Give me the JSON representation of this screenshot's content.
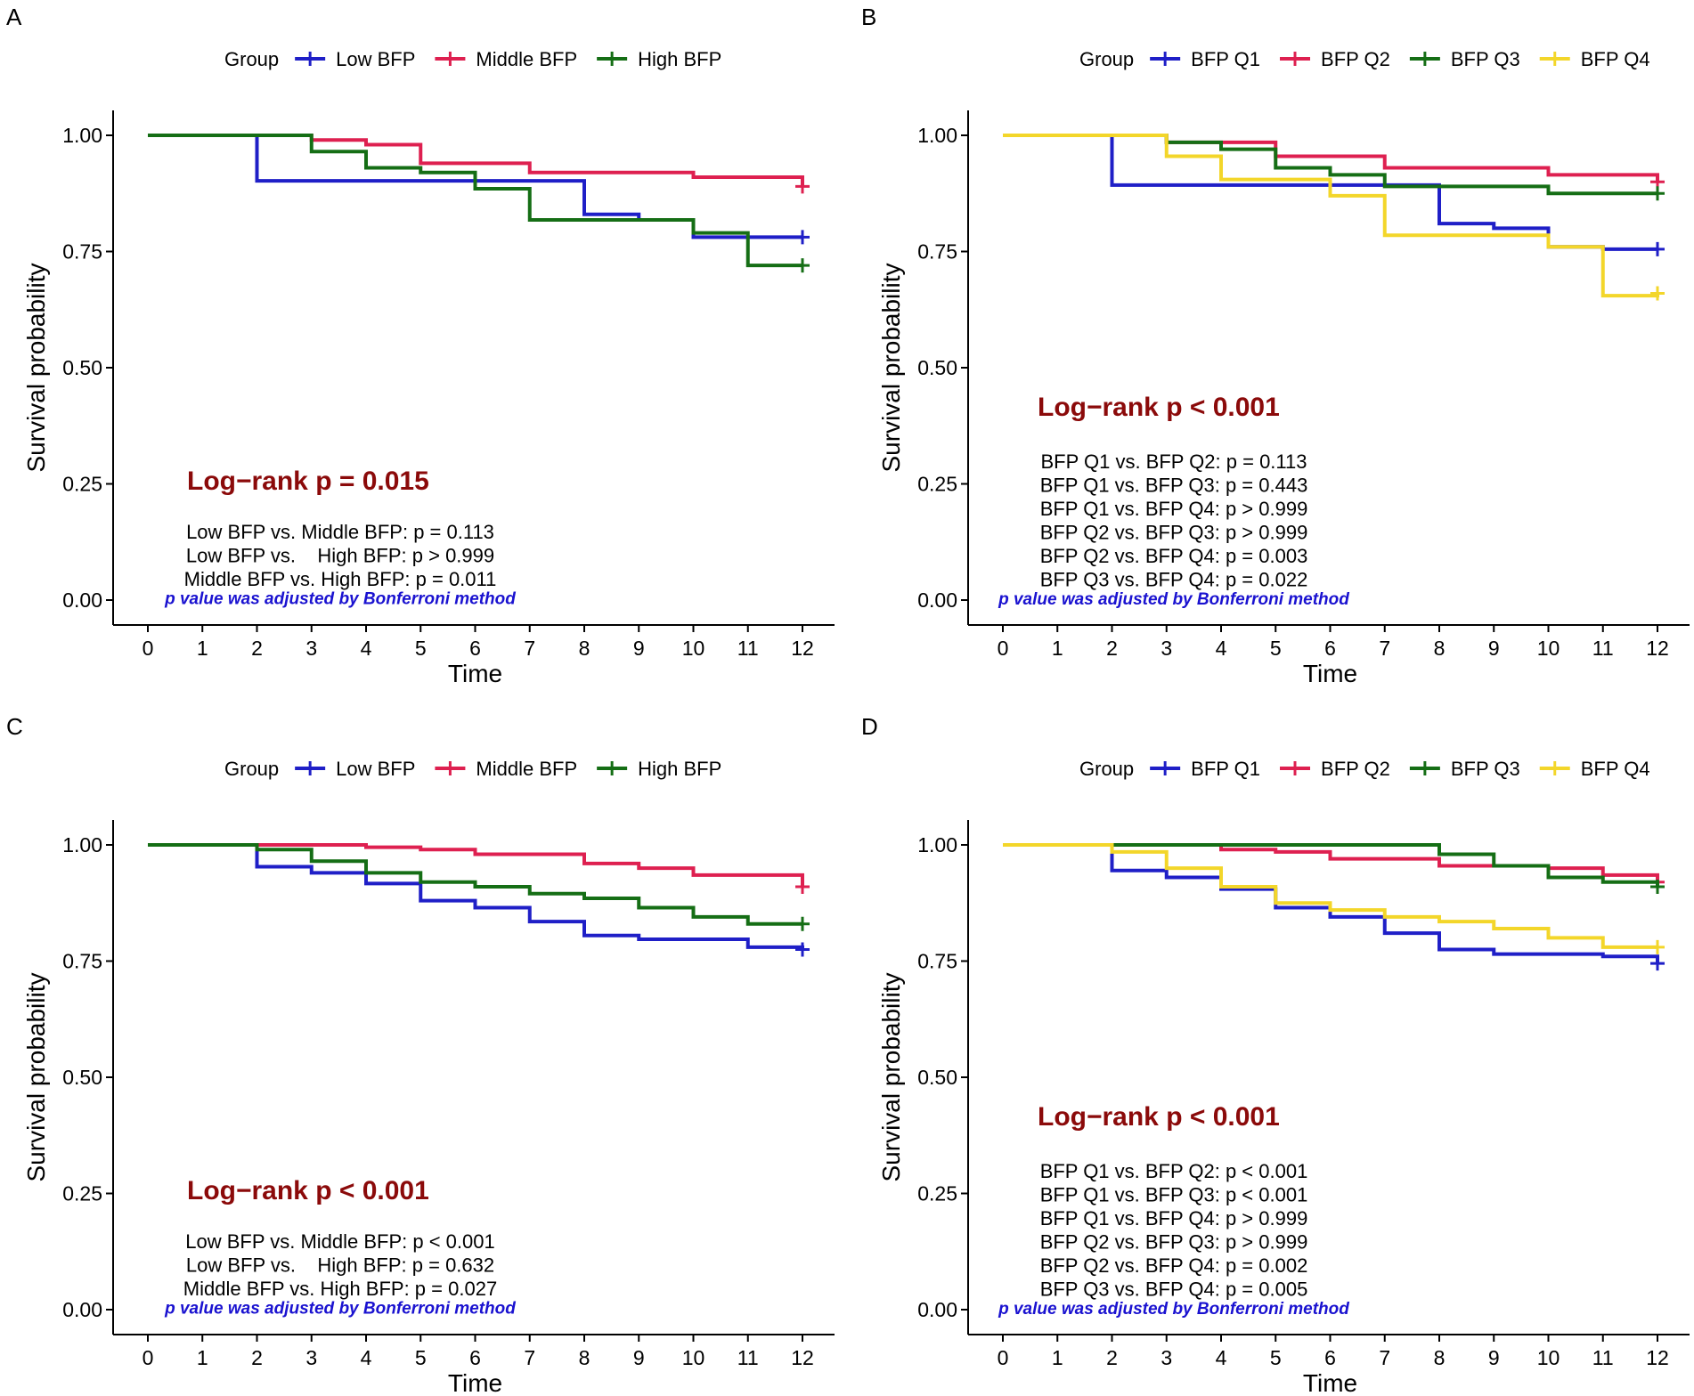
{
  "figure_title": "",
  "chart_data": [
    {
      "type": "line",
      "panel": "A",
      "legend_title": "Group",
      "xlabel": "Time",
      "ylabel": "Survival probability",
      "xticks": [
        0,
        1,
        2,
        3,
        4,
        5,
        6,
        7,
        8,
        9,
        10,
        11,
        12
      ],
      "yticks": [
        "0.00",
        "0.25",
        "0.50",
        "0.75",
        "1.00"
      ],
      "xlim": [
        0,
        12
      ],
      "ylim": [
        0,
        1
      ],
      "logrank": "Log−rank p = 0.015",
      "pairwise": [
        "Low BFP vs. Middle BFP: p = 0.113",
        "Low BFP vs.    High BFP: p > 0.999",
        "Middle BFP vs. High BFP: p = 0.011"
      ],
      "footnote": "p value was adjusted by Bonferroni method",
      "series": [
        {
          "name": "Low BFP",
          "color": "#1f1fc7",
          "x": [
            0,
            2,
            8,
            9,
            10,
            12
          ],
          "y": [
            1.0,
            0.902,
            0.83,
            0.818,
            0.781,
            0.781
          ]
        },
        {
          "name": "Middle BFP",
          "color": "#de2050",
          "x": [
            0,
            3,
            4,
            5,
            7,
            10,
            12
          ],
          "y": [
            1.0,
            0.99,
            0.98,
            0.94,
            0.92,
            0.91,
            0.89
          ]
        },
        {
          "name": "High BFP",
          "color": "#156e15",
          "x": [
            0,
            3,
            4,
            5,
            6,
            7,
            10,
            11,
            12
          ],
          "y": [
            1.0,
            0.965,
            0.93,
            0.92,
            0.885,
            0.818,
            0.79,
            0.72,
            0.72
          ]
        }
      ]
    },
    {
      "type": "line",
      "panel": "B",
      "legend_title": "Group",
      "xlabel": "Time",
      "ylabel": "Survival probability",
      "xticks": [
        0,
        1,
        2,
        3,
        4,
        5,
        6,
        7,
        8,
        9,
        10,
        11,
        12
      ],
      "yticks": [
        "0.00",
        "0.25",
        "0.50",
        "0.75",
        "1.00"
      ],
      "xlim": [
        0,
        12
      ],
      "ylim": [
        0,
        1
      ],
      "logrank": "Log−rank p < 0.001",
      "pairwise": [
        "BFP Q1 vs. BFP Q2: p = 0.113",
        "BFP Q1 vs. BFP Q3: p = 0.443",
        "BFP Q1 vs. BFP Q4: p > 0.999",
        "BFP Q2 vs. BFP Q3: p > 0.999",
        "BFP Q2 vs. BFP Q4: p = 0.003",
        "BFP Q3 vs. BFP Q4: p = 0.022"
      ],
      "footnote": "p value was adjusted by Bonferroni method",
      "series": [
        {
          "name": "BFP Q1",
          "color": "#1f1fc7",
          "x": [
            0,
            2,
            8,
            9,
            10,
            11,
            12
          ],
          "y": [
            1.0,
            0.893,
            0.81,
            0.8,
            0.76,
            0.755,
            0.755
          ]
        },
        {
          "name": "BFP Q2",
          "color": "#de2050",
          "x": [
            0,
            3,
            4,
            5,
            7,
            10,
            12
          ],
          "y": [
            1.0,
            0.985,
            0.985,
            0.955,
            0.93,
            0.915,
            0.9
          ]
        },
        {
          "name": "BFP Q3",
          "color": "#156e15",
          "x": [
            0,
            3,
            4,
            5,
            6,
            7,
            10,
            12
          ],
          "y": [
            1.0,
            0.985,
            0.97,
            0.93,
            0.915,
            0.89,
            0.875,
            0.875
          ]
        },
        {
          "name": "BFP Q4",
          "color": "#f3d62a",
          "x": [
            0,
            3,
            4,
            6,
            7,
            10,
            11,
            12
          ],
          "y": [
            1.0,
            0.955,
            0.905,
            0.87,
            0.785,
            0.76,
            0.655,
            0.66
          ]
        }
      ]
    },
    {
      "type": "line",
      "panel": "C",
      "legend_title": "Group",
      "xlabel": "Time",
      "ylabel": "Survival probability",
      "xticks": [
        0,
        1,
        2,
        3,
        4,
        5,
        6,
        7,
        8,
        9,
        10,
        11,
        12
      ],
      "yticks": [
        "0.00",
        "0.25",
        "0.50",
        "0.75",
        "1.00"
      ],
      "xlim": [
        0,
        12
      ],
      "ylim": [
        0,
        1
      ],
      "logrank": "Log−rank p < 0.001",
      "pairwise": [
        "Low BFP vs. Middle BFP: p < 0.001",
        "Low BFP vs.    High BFP: p = 0.632",
        "Middle BFP vs. High BFP: p = 0.027"
      ],
      "footnote": "p value was adjusted by Bonferroni method",
      "series": [
        {
          "name": "Low BFP",
          "color": "#1f1fc7",
          "x": [
            0,
            2,
            3,
            4,
            5,
            6,
            7,
            8,
            9,
            11,
            12
          ],
          "y": [
            1.0,
            0.953,
            0.94,
            0.917,
            0.88,
            0.865,
            0.835,
            0.805,
            0.797,
            0.78,
            0.775
          ]
        },
        {
          "name": "Middle BFP",
          "color": "#de2050",
          "x": [
            0,
            2,
            4,
            5,
            6,
            8,
            9,
            10,
            12
          ],
          "y": [
            1.0,
            1.0,
            0.995,
            0.99,
            0.98,
            0.96,
            0.95,
            0.935,
            0.91
          ]
        },
        {
          "name": "High BFP",
          "color": "#156e15",
          "x": [
            0,
            2,
            3,
            4,
            5,
            6,
            7,
            8,
            9,
            10,
            11,
            12
          ],
          "y": [
            1.0,
            0.99,
            0.965,
            0.94,
            0.92,
            0.91,
            0.895,
            0.885,
            0.865,
            0.845,
            0.83,
            0.83
          ]
        }
      ]
    },
    {
      "type": "line",
      "panel": "D",
      "legend_title": "Group",
      "xlabel": "Time",
      "ylabel": "Survival probability",
      "xticks": [
        0,
        1,
        2,
        3,
        4,
        5,
        6,
        7,
        8,
        9,
        10,
        11,
        12
      ],
      "yticks": [
        "0.00",
        "0.25",
        "0.50",
        "0.75",
        "1.00"
      ],
      "xlim": [
        0,
        12
      ],
      "ylim": [
        0,
        1
      ],
      "logrank": "Log−rank p < 0.001",
      "pairwise": [
        "BFP Q1 vs. BFP Q2: p < 0.001",
        "BFP Q1 vs. BFP Q3: p < 0.001",
        "BFP Q1 vs. BFP Q4: p > 0.999",
        "BFP Q2 vs. BFP Q3: p > 0.999",
        "BFP Q2 vs. BFP Q4: p = 0.002",
        "BFP Q3 vs. BFP Q4: p = 0.005"
      ],
      "footnote": "p value was adjusted by Bonferroni method",
      "series": [
        {
          "name": "BFP Q1",
          "color": "#1f1fc7",
          "x": [
            0,
            2,
            3,
            4,
            5,
            6,
            7,
            8,
            9,
            11,
            12
          ],
          "y": [
            1.0,
            0.945,
            0.93,
            0.905,
            0.865,
            0.845,
            0.81,
            0.775,
            0.765,
            0.76,
            0.745
          ]
        },
        {
          "name": "BFP Q2",
          "color": "#de2050",
          "x": [
            0,
            4,
            5,
            6,
            8,
            9,
            10,
            11,
            12
          ],
          "y": [
            1.0,
            0.99,
            0.985,
            0.97,
            0.955,
            0.955,
            0.95,
            0.935,
            0.92
          ]
        },
        {
          "name": "BFP Q3",
          "color": "#156e15",
          "x": [
            0,
            8,
            9,
            10,
            11,
            12
          ],
          "y": [
            1.0,
            0.98,
            0.955,
            0.93,
            0.92,
            0.91
          ]
        },
        {
          "name": "BFP Q4",
          "color": "#f3d62a",
          "x": [
            0,
            2,
            3,
            4,
            5,
            6,
            7,
            8,
            9,
            10,
            11,
            12
          ],
          "y": [
            1.0,
            0.985,
            0.95,
            0.91,
            0.875,
            0.86,
            0.845,
            0.835,
            0.82,
            0.8,
            0.78,
            0.78
          ]
        }
      ]
    }
  ]
}
